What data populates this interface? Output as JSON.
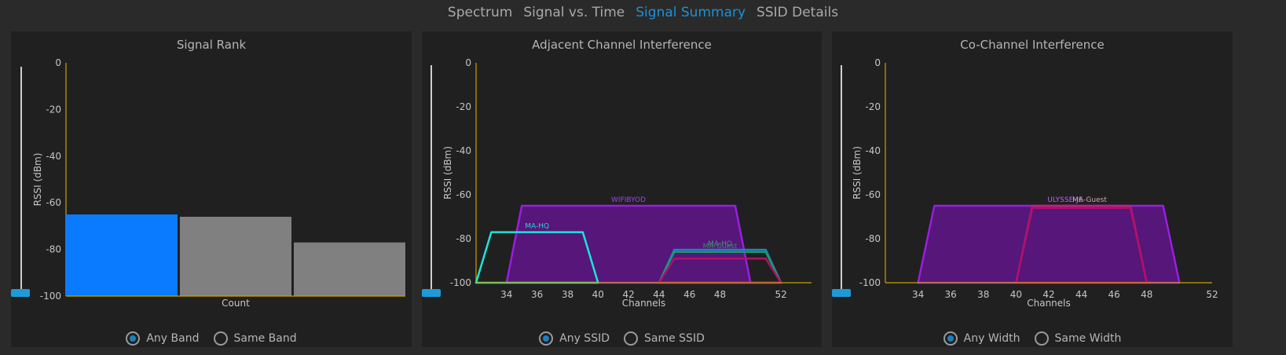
{
  "tabs": [
    {
      "label": "Spectrum",
      "active": false
    },
    {
      "label": "Signal vs. Time",
      "active": false
    },
    {
      "label": "Signal Summary",
      "active": true
    },
    {
      "label": "SSID Details",
      "active": false
    }
  ],
  "panels": {
    "rank": {
      "title": "Signal Rank",
      "ylabel": "RSSI (dBm)",
      "xlabel": "Count",
      "radios": [
        {
          "label": "Any Band",
          "checked": true
        },
        {
          "label": "Same Band",
          "checked": false
        }
      ]
    },
    "adjacent": {
      "title": "Adjacent Channel Interference",
      "ylabel": "RSSI (dBm)",
      "xlabel": "Channels",
      "radios": [
        {
          "label": "Any SSID",
          "checked": true
        },
        {
          "label": "Same SSID",
          "checked": false
        }
      ]
    },
    "cochannel": {
      "title": "Co-Channel Interference",
      "ylabel": "RSSI (dBm)",
      "xlabel": "Channels",
      "radios": [
        {
          "label": "Any Width",
          "checked": true
        },
        {
          "label": "Same Width",
          "checked": false
        }
      ]
    }
  },
  "chart_data": [
    {
      "type": "bar",
      "title": "Signal Rank",
      "ylabel": "RSSI (dBm)",
      "xlabel": "Count",
      "ylim": [
        -100,
        0
      ],
      "yticks": [
        0,
        -20,
        -40,
        -60,
        -80,
        -100
      ],
      "values": [
        -65,
        -66,
        -77
      ],
      "colors": [
        "#0a7aff",
        "#808080",
        "#808080"
      ]
    },
    {
      "type": "area",
      "title": "Adjacent Channel Interference",
      "ylabel": "RSSI (dBm)",
      "xlabel": "Channels",
      "ylim": [
        -100,
        0
      ],
      "xlim": [
        32,
        54
      ],
      "yticks": [
        0,
        -20,
        -40,
        -60,
        -80,
        -100
      ],
      "xticks": [
        34,
        36,
        38,
        40,
        42,
        44,
        46,
        48,
        52
      ],
      "series": [
        {
          "name": "WIFIBYOD",
          "x": [
            34,
            35,
            49,
            50
          ],
          "y": [
            -100,
            -65,
            -65,
            -100
          ],
          "stroke": "#9a1ee0",
          "fill": "#5c1584",
          "label_x": 42,
          "label_color": "#a63cff"
        },
        {
          "name": "MA-HQ",
          "x": [
            32,
            33,
            39,
            40
          ],
          "y": [
            -100,
            -77,
            -77,
            -100
          ],
          "stroke": "#19e6d8",
          "fill": "none",
          "label_x": 36,
          "label_color": "#23d9d0"
        },
        {
          "name": "MA-HQ",
          "x": [
            44,
            45,
            51,
            52
          ],
          "y": [
            -100,
            -85,
            -85,
            -100
          ],
          "stroke": "#2080c8",
          "fill": "none",
          "label_x": 48,
          "label_color": "#3a9a6a"
        },
        {
          "name": "MA-Guest",
          "x": [
            44,
            45,
            51,
            52
          ],
          "y": [
            -100,
            -86,
            -86,
            -100
          ],
          "stroke": "#1a9a6a",
          "fill": "none",
          "label_x": 48,
          "label_color": "#3a8a5a"
        },
        {
          "name": "",
          "x": [
            44,
            45,
            51,
            52
          ],
          "y": [
            -100,
            -89,
            -89,
            -100
          ],
          "stroke": "#b0106a",
          "fill": "none",
          "label_x": 48,
          "label_color": "#b0106a"
        }
      ]
    },
    {
      "type": "area",
      "title": "Co-Channel Interference",
      "ylabel": "RSSI (dBm)",
      "xlabel": "Channels",
      "ylim": [
        -100,
        0
      ],
      "xlim": [
        32,
        52
      ],
      "yticks": [
        0,
        -20,
        -40,
        -60,
        -80,
        -100
      ],
      "xticks": [
        34,
        36,
        38,
        40,
        42,
        44,
        46,
        48,
        52
      ],
      "series": [
        {
          "name": "ULYSSE-JE",
          "x": [
            34,
            35,
            49,
            50
          ],
          "y": [
            -100,
            -65,
            -65,
            -100
          ],
          "stroke": "#9a1ee0",
          "fill": "#5c1584",
          "label_x": 43,
          "label_color": "#c060ff"
        },
        {
          "name": "MA-Guest",
          "x": [
            40,
            41,
            47,
            48
          ],
          "y": [
            -100,
            -65,
            -65,
            -100
          ],
          "stroke": "#c0207a",
          "fill": "none",
          "label_x": 44.5,
          "label_color": "#d8a0c0"
        },
        {
          "name": "",
          "x": [
            40,
            41,
            47,
            48
          ],
          "y": [
            -100,
            -66,
            -66,
            -100
          ],
          "stroke": "#b0106a",
          "fill": "none",
          "label_x": 44.5,
          "label_color": "#b0106a"
        }
      ]
    }
  ],
  "colors": {
    "accent": "#1e90d6",
    "axis": "#c8a000",
    "bar_primary": "#0a7aff",
    "bar_secondary": "#808080"
  }
}
